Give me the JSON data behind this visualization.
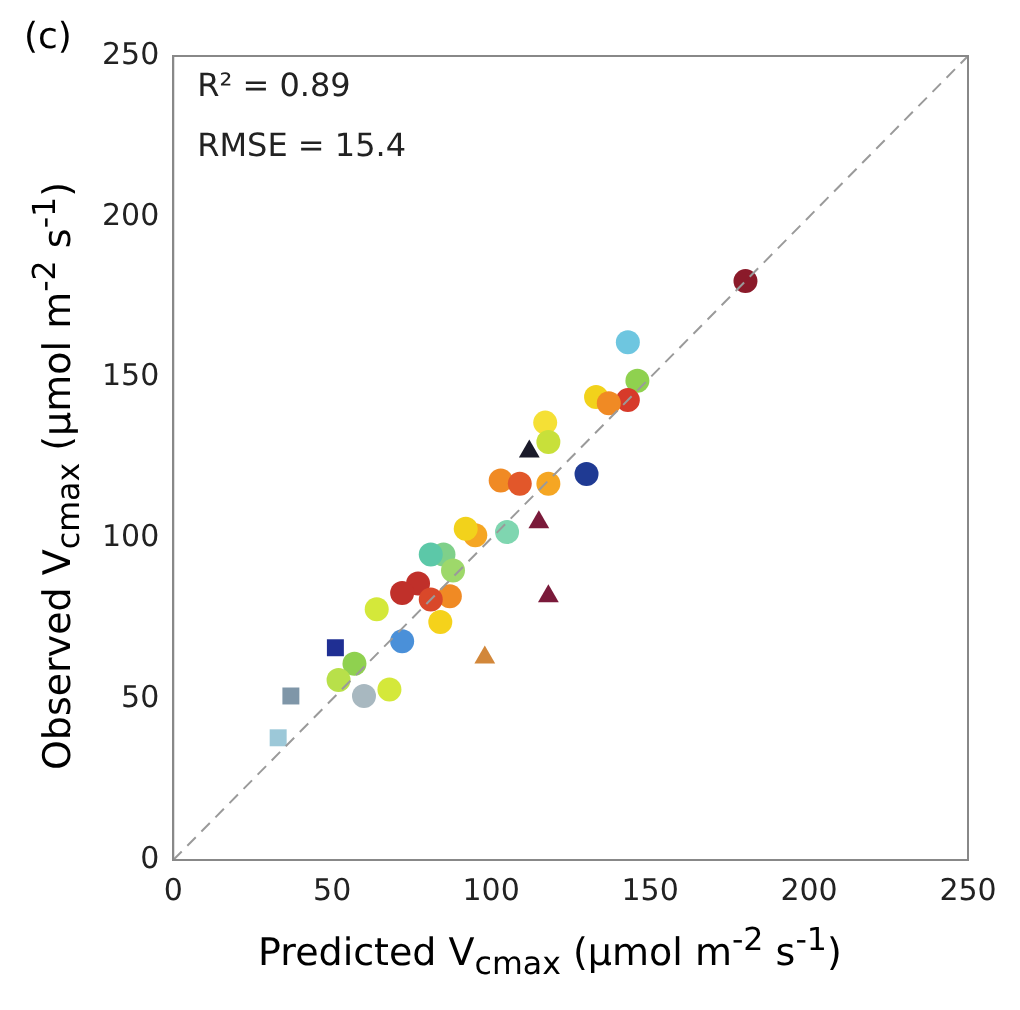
{
  "chart_data": {
    "type": "scatter",
    "xlabel": "Predicted V$_{cmax}$ (μmol m$^{-2}$ s$^{-1}$)",
    "ylabel": "Observed V$_{cmax}$ (μmol m$^{-2}$ s$^{-1}$)",
    "annotations": [
      "(c)",
      "R² = 0.89",
      "RMSE = 15.4"
    ],
    "xlim": [
      0,
      250
    ],
    "ylim": [
      0,
      250
    ],
    "xticks": [
      0,
      50,
      100,
      150,
      200,
      250
    ],
    "yticks": [
      0,
      50,
      100,
      150,
      200,
      250
    ],
    "grid": false,
    "legend": false,
    "series": [
      {
        "type": "line",
        "marker": "none",
        "line_style": "dashed",
        "color": "#9a9a9a",
        "x": [
          0,
          250
        ],
        "values": [
          0,
          250
        ]
      },
      {
        "marker": "circle",
        "x": [
          180,
          143,
          146,
          133,
          143,
          137,
          117,
          118,
          130,
          103,
          109,
          118,
          105,
          95,
          92,
          85,
          81,
          88,
          77,
          72,
          87,
          81,
          84,
          64,
          72,
          57,
          52,
          60,
          68
        ],
        "values": [
          180,
          161,
          149,
          144,
          143,
          142,
          136,
          130,
          120,
          118,
          117,
          117,
          102,
          101,
          103,
          95,
          95,
          90,
          86,
          83,
          82,
          81,
          74,
          78,
          68,
          61,
          56,
          51,
          53
        ],
        "colors": [
          "#8b1a2a",
          "#6ec6e0",
          "#8fd14f",
          "#f2d21b",
          "#d73a2a",
          "#f08a24",
          "#f5e035",
          "#c8e03a",
          "#1f3a93",
          "#f08a24",
          "#e2572a",
          "#f5a623",
          "#7fd6b0",
          "#f5a623",
          "#f2d21b",
          "#7fd08a",
          "#5cc8a8",
          "#9ed86a",
          "#c0302a",
          "#c0302a",
          "#f08a24",
          "#d9482a",
          "#f5d21b",
          "#d4e83a",
          "#4a90d9",
          "#8fd14f",
          "#b8e04a",
          "#a8b8c0",
          "#d4e83a"
        ]
      },
      {
        "marker": "square",
        "x": [
          51,
          37,
          33
        ],
        "values": [
          66,
          51,
          38
        ],
        "colors": [
          "#1f2f93",
          "#7f96a8",
          "#9cc8d8"
        ]
      },
      {
        "marker": "triangle",
        "x": [
          112,
          115,
          118,
          98
        ],
        "values": [
          127,
          105,
          82,
          63
        ],
        "colors": [
          "#1a1a2a",
          "#7a1a3a",
          "#7a1a3a",
          "#d2873a"
        ]
      }
    ]
  }
}
